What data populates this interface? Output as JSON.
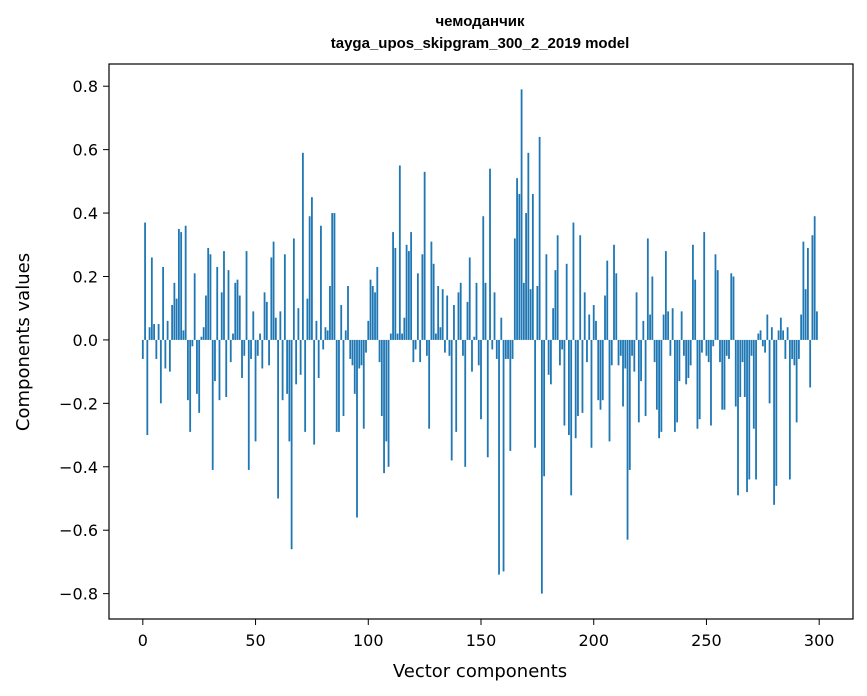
{
  "chart_data": {
    "type": "bar",
    "title": "чемоданчик",
    "subtitle": "tayga_upos_skipgram_300_2_2019 model",
    "xlabel": "Vector components",
    "ylabel": "Components values",
    "xlim": [
      -15,
      315
    ],
    "ylim": [
      -0.88,
      0.87
    ],
    "x_ticks": [
      0,
      50,
      100,
      150,
      200,
      250,
      300
    ],
    "x_tick_labels": [
      "0",
      "50",
      "100",
      "150",
      "200",
      "250",
      "300"
    ],
    "y_ticks": [
      -0.8,
      -0.6,
      -0.4,
      -0.2,
      0.0,
      0.2,
      0.4,
      0.6,
      0.8
    ],
    "y_tick_labels": [
      "−0.8",
      "−0.6",
      "−0.4",
      "−0.2",
      "0.0",
      "0.2",
      "0.4",
      "0.6",
      "0.8"
    ],
    "grid": false,
    "bar_color": "#1f77b4",
    "values": [
      -0.06,
      0.37,
      -0.3,
      0.04,
      0.26,
      0.05,
      -0.06,
      0.05,
      -0.2,
      0.23,
      -0.09,
      0.06,
      -0.1,
      0.11,
      0.18,
      0.13,
      0.35,
      0.34,
      0.03,
      0.36,
      -0.19,
      -0.29,
      -0.02,
      0.21,
      -0.17,
      -0.23,
      0.01,
      0.04,
      0.14,
      0.29,
      0.27,
      -0.41,
      -0.13,
      0.23,
      -0.19,
      0.15,
      0.28,
      -0.18,
      0.22,
      -0.07,
      0.02,
      0.18,
      0.19,
      0.14,
      -0.12,
      -0.05,
      0.28,
      -0.41,
      -0.06,
      0.09,
      -0.32,
      -0.05,
      0.02,
      -0.09,
      0.15,
      0.12,
      -0.08,
      0.26,
      0.31,
      0.07,
      -0.5,
      0.09,
      -0.19,
      0.27,
      -0.17,
      -0.32,
      -0.66,
      0.32,
      -0.14,
      0.1,
      -0.11,
      0.59,
      -0.29,
      0.13,
      0.39,
      0.45,
      -0.33,
      0.06,
      -0.12,
      0.36,
      -0.03,
      0.04,
      0.03,
      0.17,
      0.4,
      0.4,
      -0.29,
      -0.29,
      0.11,
      -0.24,
      0.03,
      0.17,
      -0.06,
      -0.08,
      -0.17,
      -0.56,
      -0.09,
      -0.08,
      -0.28,
      -0.04,
      0.06,
      0.19,
      0.17,
      0.15,
      0.23,
      -0.07,
      -0.24,
      -0.42,
      -0.32,
      -0.4,
      0.02,
      0.34,
      0.29,
      0.02,
      0.55,
      0.02,
      0.07,
      0.3,
      0.28,
      0.34,
      -0.07,
      -0.03,
      0.21,
      -0.07,
      0.27,
      0.53,
      -0.05,
      -0.28,
      0.31,
      0.24,
      0.02,
      0.17,
      0.04,
      0.16,
      -0.04,
      0.14,
      -0.05,
      -0.38,
      0.11,
      -0.29,
      0.15,
      0.18,
      -0.05,
      -0.4,
      0.12,
      0.26,
      -0.1,
      0.01,
      0.18,
      -0.08,
      -0.25,
      0.39,
      0.18,
      -0.37,
      0.54,
      -0.03,
      0.15,
      -0.06,
      -0.74,
      0.07,
      -0.73,
      -0.06,
      -0.06,
      -0.35,
      -0.06,
      0.32,
      0.51,
      0.46,
      0.79,
      0.18,
      0.4,
      0.59,
      0.16,
      0.46,
      -0.34,
      0.17,
      0.64,
      -0.8,
      -0.43,
      0.27,
      -0.11,
      -0.14,
      0.1,
      0.22,
      0.33,
      -0.08,
      -0.03,
      -0.27,
      0.24,
      -0.3,
      -0.49,
      0.37,
      -0.31,
      -0.24,
      0.33,
      -0.23,
      0.15,
      -0.07,
      0.08,
      -0.34,
      0.11,
      0.06,
      -0.19,
      -0.22,
      -0.19,
      0.14,
      0.25,
      -0.32,
      -0.08,
      0.3,
      0.21,
      -0.08,
      -0.05,
      -0.21,
      -0.09,
      -0.63,
      -0.41,
      -0.05,
      -0.1,
      0.15,
      -0.26,
      -0.13,
      0.06,
      -0.24,
      0.32,
      0.08,
      0.2,
      -0.07,
      -0.22,
      -0.31,
      -0.29,
      0.08,
      0.28,
      0.09,
      -0.05,
      0.1,
      -0.29,
      -0.26,
      -0.13,
      0.09,
      -0.05,
      -0.14,
      -0.12,
      -0.08,
      0.3,
      0.19,
      -0.28,
      -0.25,
      -0.04,
      0.34,
      -0.05,
      -0.07,
      -0.27,
      -0.02,
      0.27,
      0.22,
      -0.07,
      -0.22,
      -0.22,
      -0.05,
      -0.06,
      0.21,
      0.2,
      -0.21,
      -0.49,
      -0.18,
      -0.07,
      -0.18,
      -0.48,
      -0.44,
      -0.05,
      -0.28,
      -0.44,
      0.02,
      0.03,
      -0.02,
      -0.04,
      0.08,
      -0.2,
      0.04,
      -0.52,
      -0.46,
      0.03,
      0.07,
      0.03,
      -0.06,
      0.04,
      -0.44,
      -0.06,
      -0.08,
      -0.26,
      -0.06,
      0.08,
      0.31,
      0.16,
      0.29,
      -0.15,
      0.33,
      0.39,
      0.09
    ]
  }
}
